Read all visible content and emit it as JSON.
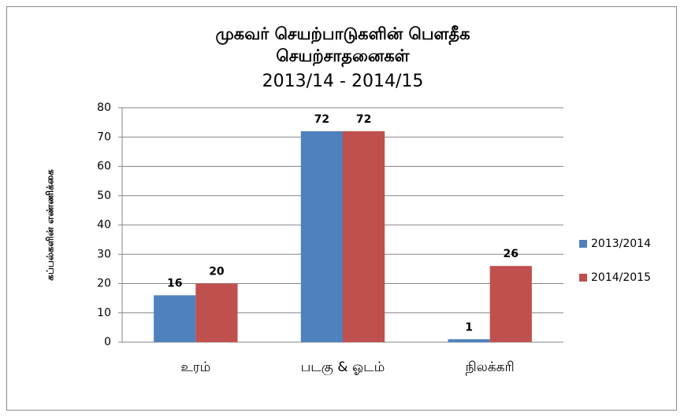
{
  "chart_data": {
    "type": "bar",
    "title": [
      "முகவர் செயற்பாடுகளின் பௌதீக",
      "செயற்சாதனைகள்"
    ],
    "subtitle": "2013/14 - 2014/15",
    "y_label": "கப்பல்களின் எண்ணிக்கை",
    "categories": [
      "உரம்",
      "படகு & ஓடம்",
      "நிலக்கரி"
    ],
    "series": [
      {
        "name": "2013/2014",
        "color": "#4f81bd",
        "values": [
          16,
          72,
          1
        ]
      },
      {
        "name": "2014/2015",
        "color": "#c0504d",
        "values": [
          20,
          72,
          26
        ]
      }
    ],
    "ylim": [
      0,
      80
    ],
    "yticks": [
      0,
      10,
      20,
      30,
      40,
      50,
      60,
      70,
      80
    ],
    "grid": true,
    "legend": "right"
  }
}
